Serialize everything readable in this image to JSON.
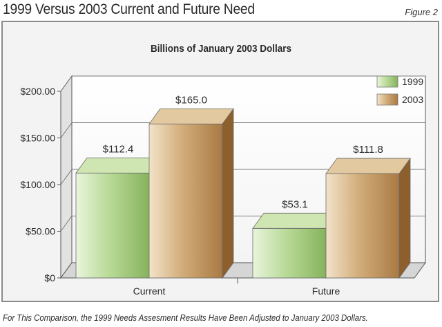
{
  "header": {
    "title": "1999 Versus 2003 Current and Future Need",
    "figure_label": "Figure 2"
  },
  "footnote": "For This Comparison, the 1999 Needs Assesment Results Have Been Adjusted to January 2003 Dollars.",
  "colors": {
    "series_1999": "#a9cf86",
    "series_2003": "#c9a06a"
  },
  "chart_data": {
    "type": "bar",
    "title": "Billions of January 2003 Dollars",
    "xlabel": "",
    "ylabel": "",
    "categories": [
      "Current",
      "Future"
    ],
    "series": [
      {
        "name": "1999",
        "values": [
          112.4,
          53.1
        ],
        "labels": [
          "$112.4",
          "$53.1"
        ]
      },
      {
        "name": "2003",
        "values": [
          165.0,
          111.8
        ],
        "labels": [
          "$165.0",
          "$111.8"
        ]
      }
    ],
    "ylim": [
      0,
      200
    ],
    "yticks": [
      0,
      50,
      100,
      150,
      200
    ],
    "ytick_labels": [
      "$0",
      "$50.00",
      "$100.00",
      "$150.00",
      "$200.00"
    ],
    "grid": true,
    "legend_position": "top-right",
    "style": "3d"
  }
}
